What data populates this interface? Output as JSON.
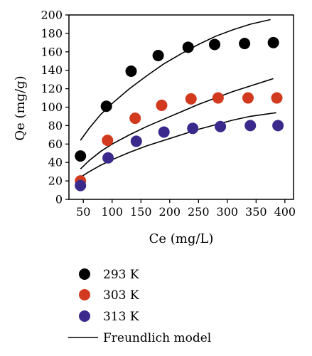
{
  "chart_data": {
    "type": "scatter",
    "xlabel": "Ce (mg/L)",
    "ylabel": "Qe (mg/g)",
    "xlim": [
      25,
      415
    ],
    "ylim": [
      0,
      200
    ],
    "xticks": [
      50,
      100,
      150,
      200,
      250,
      300,
      350,
      400
    ],
    "yticks": [
      0,
      20,
      40,
      60,
      80,
      100,
      120,
      140,
      160,
      180,
      200
    ],
    "grid": false,
    "legend_position": "below-plot",
    "series": [
      {
        "name": "293 K",
        "color": "#000000",
        "marker": "circle",
        "x": [
          45,
          90,
          133,
          180,
          232,
          278,
          330,
          380
        ],
        "y": [
          47,
          101,
          139,
          156,
          165,
          168,
          169,
          170
        ]
      },
      {
        "name": "303 K",
        "color": "#d23a1f",
        "marker": "circle",
        "x": [
          45,
          92,
          140,
          186,
          237,
          284,
          336,
          386
        ],
        "y": [
          20,
          64,
          88,
          102,
          109,
          110,
          110,
          110
        ]
      },
      {
        "name": "313 K",
        "color": "#3b2a8c",
        "marker": "circle",
        "x": [
          45,
          93,
          142,
          190,
          240,
          288,
          340,
          388
        ],
        "y": [
          15,
          45,
          63,
          73,
          77,
          79,
          80,
          80
        ]
      }
    ],
    "fit_lines": [
      {
        "name": "Freundlich model",
        "color": "#000000",
        "for_series": "293 K",
        "x": [
          45,
          60,
          80,
          100,
          130,
          160,
          190,
          220,
          250,
          280,
          310,
          340,
          375
        ],
        "y": [
          64,
          77,
          92,
          104,
          120,
          134,
          147,
          158,
          168,
          177,
          184,
          190,
          195
        ]
      },
      {
        "name": "Freundlich model",
        "color": "#000000",
        "for_series": "303 K",
        "x": [
          45,
          60,
          80,
          100,
          130,
          160,
          190,
          220,
          250,
          280,
          310,
          340,
          380
        ],
        "y": [
          33,
          42,
          52,
          60,
          70,
          79,
          87,
          95,
          103,
          110,
          117,
          123,
          131
        ]
      },
      {
        "name": "Freundlich model",
        "color": "#000000",
        "for_series": "313 K",
        "x": [
          45,
          60,
          80,
          100,
          130,
          160,
          190,
          220,
          250,
          280,
          310,
          340,
          385
        ],
        "y": [
          24,
          30,
          37,
          43,
          51,
          58,
          64,
          70,
          76,
          81,
          86,
          90,
          94
        ]
      }
    ]
  }
}
